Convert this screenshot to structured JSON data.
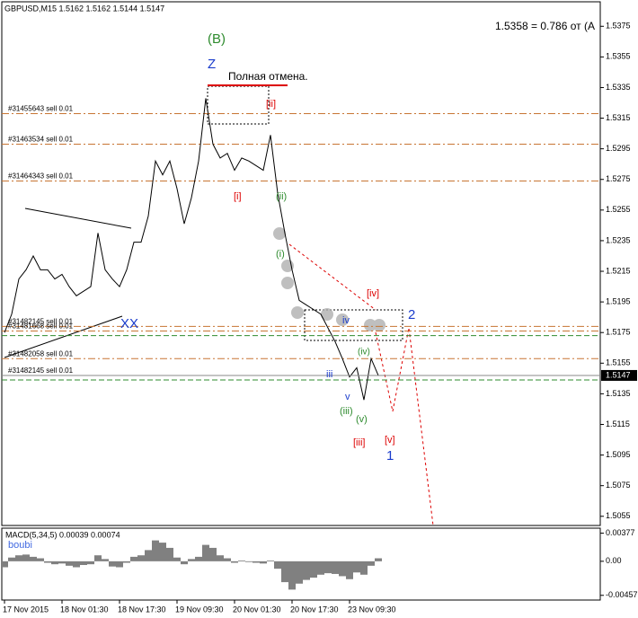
{
  "chart_data": [
    {
      "type": "line",
      "title": "GBPUSD,M15  1.5162 1.5162 1.5144 1.5147",
      "info": "1.5358 = 0.786   от (А",
      "categories": [
        "17 Nov 2015",
        null,
        null,
        null,
        null,
        null,
        null,
        null,
        "18 Nov 01:30",
        null,
        null,
        null,
        null,
        null,
        null,
        null,
        "18 Nov 17:30",
        null,
        null,
        null,
        null,
        null,
        null,
        null,
        "19 Nov 09:30",
        null,
        null,
        null,
        null,
        null,
        null,
        null,
        "20 Nov 01:30",
        null,
        null,
        null,
        null,
        null,
        null,
        null,
        "20 Nov 17:30",
        null,
        null,
        null,
        null,
        null,
        null,
        null,
        "23 Nov 09:30",
        null,
        null,
        null,
        null
      ],
      "series": [
        {
          "color": "#000000",
          "values": [
            1.5175,
            1.5187,
            1.521,
            1.5216,
            1.5225,
            1.5216,
            1.5216,
            1.521,
            1.5213,
            1.5205,
            1.5199,
            1.5202,
            1.5205,
            1.524,
            1.5216,
            1.521,
            1.5205,
            1.5216,
            1.5234,
            1.5234,
            1.5251,
            1.5287,
            1.5278,
            1.5287,
            1.5269,
            1.5246,
            1.5263,
            1.5287,
            1.5328,
            1.5298,
            1.5289,
            1.5292,
            1.5281,
            1.5289,
            1.5287,
            1.5284,
            1.5281,
            1.5304,
            1.5266,
            1.524,
            1.5216,
            1.5196,
            1.5193,
            1.519,
            1.5187,
            1.5178,
            1.5169,
            1.5158,
            1.5146,
            1.5152,
            1.5131,
            1.5158,
            1.5147
          ]
        }
      ],
      "ylim": [
        1.5049,
        1.5391
      ],
      "yticks": [
        1.5375,
        1.5355,
        1.5335,
        1.5315,
        1.5295,
        1.5275,
        1.5255,
        1.5235,
        1.5215,
        1.5195,
        1.5175,
        1.5155,
        1.5135,
        1.5115,
        1.5095,
        1.5075,
        1.5055
      ],
      "last_price": 1.5147,
      "levels": [
        {
          "label": "#31455643 sell 0.01",
          "value": 1.5318,
          "color": "#c87533"
        },
        {
          "label": "#31463534 sell 0.01",
          "value": 1.5298,
          "color": "#c87533"
        },
        {
          "label": "#31464343 sell 0.01",
          "value": 1.5274,
          "color": "#c87533"
        },
        {
          "label": "#31482145 sell 0.01",
          "value": 1.5179,
          "color": "#c87533"
        },
        {
          "label": "#31481668 sell 0.01",
          "value": 1.5176,
          "color": "#c87533"
        },
        {
          "label": "#31482058 sell 0.01",
          "value": 1.5158,
          "color": "#c87533"
        },
        {
          "label": "#31482145 sell 0.01",
          "value": 1.5147,
          "color": "#c87533"
        }
      ],
      "stop_lines": [
        {
          "value": 1.5173,
          "color": "#2e8b2e"
        },
        {
          "value": 1.5144,
          "color": "#2e8b2e"
        }
      ],
      "annotations": [
        "(B)",
        "Z",
        "Полная отмена.",
        "[ii]",
        "[i]",
        "(ii)",
        "(i)",
        "XX",
        "[iv]",
        "iv",
        "2",
        "(iv)",
        "iii",
        "v",
        "(iii)",
        "(v)",
        "[iii]",
        "[v]",
        "1"
      ]
    },
    {
      "type": "bar",
      "title": "MACD(5,34,5) 0.00039 0.00074",
      "watermark": "boubi",
      "color": "#808080",
      "values": [
        -0.0008,
        0.0005,
        0.0008,
        0.0009,
        0.0006,
        0.0004,
        -0.0002,
        -0.0004,
        -0.0003,
        -0.0006,
        -0.0008,
        -0.0005,
        -0.0004,
        0.0008,
        0.0003,
        -0.0007,
        -0.0008,
        -0.0002,
        0.0006,
        0.0008,
        0.0015,
        0.0028,
        0.0025,
        0.0018,
        0.0005,
        -0.0004,
        0.0003,
        0.0006,
        0.0022,
        0.0018,
        0.0008,
        0.0004,
        -0.0002,
        0.0001,
        -0.0001,
        -0.0002,
        -0.0003,
        0.0001,
        -0.001,
        -0.0028,
        -0.0038,
        -0.003,
        -0.0025,
        -0.0022,
        -0.0018,
        -0.0016,
        -0.0017,
        -0.002,
        -0.0024,
        -0.0015,
        -0.0018,
        -0.0006,
        0.0004
      ],
      "ylim": [
        -0.0052,
        0.0042
      ],
      "yticks": [
        0.00377,
        {
          "value": 0,
          "label": "0.00"
        },
        -0.00457
      ]
    }
  ]
}
